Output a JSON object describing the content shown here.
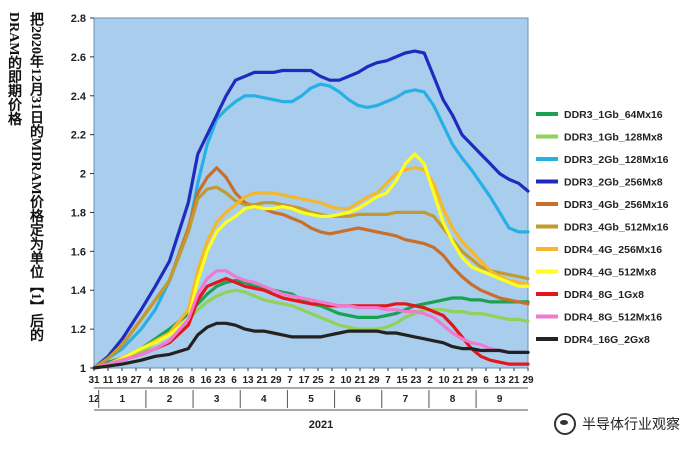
{
  "vertical_title": [
    "把2020年12月31日的MDRAM价格定为单位【1】后的",
    "DRAM的即期价格"
  ],
  "watermark": "半导体行业观察",
  "colors": {
    "plot_bg": "#a9cdec",
    "axis_text": "#222222"
  },
  "chart_data": {
    "type": "line",
    "title": "",
    "ylabel": "",
    "xlabel": "2021",
    "ylim": [
      1,
      2.8
    ],
    "yticks": [
      "1",
      "1.2",
      "1.4",
      "1.6",
      "1.8",
      "2",
      "2.2",
      "2.4",
      "2.6",
      "2.8"
    ],
    "day_ticks": [
      "31",
      "11",
      "19",
      "27",
      "4",
      "18",
      "26",
      "8",
      "16",
      "23",
      "6",
      "13",
      "21",
      "29",
      "7",
      "17",
      "25",
      "2",
      "10",
      "21",
      "29",
      "7",
      "15",
      "23",
      "2",
      "10",
      "21",
      "29",
      "6",
      "13",
      "21",
      "29"
    ],
    "month_labels": [
      "12",
      "1",
      "2",
      "3",
      "4",
      "5",
      "6",
      "7",
      "8",
      "9"
    ],
    "year_label": "2021",
    "x_months": [
      0,
      0.3,
      0.6,
      1,
      1.3,
      1.6,
      2,
      2.2,
      2.4,
      2.6,
      2.8,
      3,
      3.2,
      3.4,
      3.6,
      3.8,
      4,
      4.2,
      4.4,
      4.6,
      4.8,
      5,
      5.2,
      5.4,
      5.6,
      5.8,
      6,
      6.2,
      6.4,
      6.6,
      6.8,
      7,
      7.2,
      7.4,
      7.6,
      7.8,
      8,
      8.2,
      8.4,
      8.6,
      8.8,
      9,
      9.2
    ],
    "series": [
      {
        "name": "DDR3_1Gb_64Mx16",
        "color": "#1aa251",
        "values": [
          1,
          1.03,
          1.05,
          1.1,
          1.15,
          1.2,
          1.28,
          1.33,
          1.38,
          1.42,
          1.44,
          1.45,
          1.44,
          1.42,
          1.41,
          1.4,
          1.39,
          1.38,
          1.35,
          1.33,
          1.32,
          1.3,
          1.28,
          1.27,
          1.26,
          1.26,
          1.26,
          1.27,
          1.28,
          1.3,
          1.32,
          1.33,
          1.34,
          1.35,
          1.36,
          1.36,
          1.35,
          1.35,
          1.34,
          1.34,
          1.34,
          1.34,
          1.34
        ]
      },
      {
        "name": "DDR3_1Gb_128Mx8",
        "color": "#8fd25a",
        "values": [
          1,
          1.02,
          1.04,
          1.08,
          1.13,
          1.18,
          1.25,
          1.3,
          1.34,
          1.37,
          1.39,
          1.4,
          1.39,
          1.37,
          1.35,
          1.34,
          1.33,
          1.32,
          1.3,
          1.28,
          1.26,
          1.24,
          1.22,
          1.21,
          1.2,
          1.2,
          1.2,
          1.21,
          1.23,
          1.26,
          1.28,
          1.3,
          1.3,
          1.3,
          1.29,
          1.29,
          1.28,
          1.28,
          1.27,
          1.26,
          1.25,
          1.25,
          1.24
        ]
      },
      {
        "name": "DDR3_2Gb_128Mx16",
        "color": "#27b0e6",
        "values": [
          1,
          1.05,
          1.1,
          1.2,
          1.3,
          1.45,
          1.7,
          1.95,
          2.15,
          2.28,
          2.33,
          2.37,
          2.4,
          2.4,
          2.39,
          2.38,
          2.37,
          2.37,
          2.4,
          2.44,
          2.46,
          2.45,
          2.42,
          2.38,
          2.35,
          2.34,
          2.35,
          2.37,
          2.39,
          2.42,
          2.43,
          2.42,
          2.35,
          2.25,
          2.15,
          2.08,
          2.02,
          1.95,
          1.88,
          1.8,
          1.72,
          1.7,
          1.7
        ]
      },
      {
        "name": "DDR3_2Gb_256Mx8",
        "color": "#1f2bbf",
        "values": [
          1,
          1.06,
          1.15,
          1.3,
          1.42,
          1.55,
          1.85,
          2.1,
          2.2,
          2.3,
          2.4,
          2.48,
          2.5,
          2.52,
          2.52,
          2.52,
          2.53,
          2.53,
          2.53,
          2.53,
          2.5,
          2.48,
          2.48,
          2.5,
          2.52,
          2.55,
          2.57,
          2.58,
          2.6,
          2.62,
          2.63,
          2.62,
          2.5,
          2.38,
          2.3,
          2.2,
          2.15,
          2.1,
          2.05,
          2,
          1.97,
          1.95,
          1.91
        ]
      },
      {
        "name": "DDR3_4Gb_256Mx16",
        "color": "#c86f2c",
        "values": [
          1,
          1.05,
          1.12,
          1.25,
          1.35,
          1.45,
          1.72,
          1.9,
          1.98,
          2.03,
          1.98,
          1.9,
          1.85,
          1.83,
          1.82,
          1.8,
          1.79,
          1.77,
          1.75,
          1.72,
          1.7,
          1.69,
          1.7,
          1.71,
          1.72,
          1.71,
          1.7,
          1.69,
          1.68,
          1.66,
          1.65,
          1.64,
          1.62,
          1.58,
          1.52,
          1.47,
          1.43,
          1.4,
          1.38,
          1.36,
          1.35,
          1.34,
          1.33
        ]
      },
      {
        "name": "DDR3_4Gb_512Mx16",
        "color": "#c39a2e",
        "values": [
          1,
          1.05,
          1.12,
          1.25,
          1.35,
          1.45,
          1.7,
          1.87,
          1.92,
          1.93,
          1.9,
          1.86,
          1.84,
          1.84,
          1.85,
          1.85,
          1.84,
          1.83,
          1.82,
          1.8,
          1.79,
          1.78,
          1.78,
          1.78,
          1.79,
          1.79,
          1.79,
          1.79,
          1.8,
          1.8,
          1.8,
          1.8,
          1.78,
          1.72,
          1.66,
          1.6,
          1.56,
          1.52,
          1.5,
          1.49,
          1.48,
          1.47,
          1.46
        ]
      },
      {
        "name": "DDR4_4G_256Mx16",
        "color": "#f3b82b",
        "values": [
          1,
          1.02,
          1.05,
          1.1,
          1.14,
          1.18,
          1.3,
          1.5,
          1.65,
          1.75,
          1.8,
          1.84,
          1.88,
          1.9,
          1.9,
          1.9,
          1.89,
          1.88,
          1.87,
          1.86,
          1.85,
          1.83,
          1.82,
          1.82,
          1.85,
          1.88,
          1.9,
          1.95,
          2,
          2.02,
          2.03,
          2.02,
          1.95,
          1.82,
          1.72,
          1.65,
          1.6,
          1.55,
          1.5,
          1.47,
          1.45,
          1.44,
          1.43
        ]
      },
      {
        "name": "DDR4_4G_512Mx8",
        "color": "#ffff1c",
        "values": [
          1,
          1.02,
          1.05,
          1.1,
          1.13,
          1.17,
          1.25,
          1.45,
          1.6,
          1.7,
          1.75,
          1.78,
          1.82,
          1.83,
          1.82,
          1.82,
          1.83,
          1.82,
          1.8,
          1.79,
          1.78,
          1.78,
          1.79,
          1.8,
          1.82,
          1.85,
          1.88,
          1.9,
          1.96,
          2.05,
          2.1,
          2.05,
          1.9,
          1.75,
          1.65,
          1.57,
          1.52,
          1.5,
          1.48,
          1.46,
          1.44,
          1.42,
          1.42
        ]
      },
      {
        "name": "DDR4_8G_1Gx8",
        "color": "#e3161b",
        "values": [
          1,
          1.02,
          1.04,
          1.07,
          1.1,
          1.13,
          1.22,
          1.35,
          1.42,
          1.44,
          1.46,
          1.44,
          1.42,
          1.41,
          1.4,
          1.38,
          1.36,
          1.35,
          1.34,
          1.33,
          1.33,
          1.32,
          1.32,
          1.32,
          1.32,
          1.32,
          1.32,
          1.32,
          1.33,
          1.33,
          1.32,
          1.31,
          1.29,
          1.27,
          1.22,
          1.16,
          1.1,
          1.06,
          1.04,
          1.03,
          1.02,
          1.02,
          1.02
        ]
      },
      {
        "name": "DDR4_8G_512Mx16",
        "color": "#f07ad0",
        "values": [
          1,
          1.02,
          1.04,
          1.07,
          1.1,
          1.14,
          1.25,
          1.38,
          1.46,
          1.5,
          1.5,
          1.47,
          1.45,
          1.44,
          1.42,
          1.4,
          1.38,
          1.37,
          1.36,
          1.35,
          1.34,
          1.33,
          1.32,
          1.32,
          1.31,
          1.31,
          1.31,
          1.3,
          1.3,
          1.29,
          1.29,
          1.28,
          1.26,
          1.22,
          1.18,
          1.15,
          1.13,
          1.12,
          1.1,
          1.09,
          1.08,
          1.08,
          1.08
        ]
      },
      {
        "name": "DDR4_16G_2Gx8",
        "color": "#222222",
        "values": [
          1,
          1.01,
          1.02,
          1.04,
          1.06,
          1.07,
          1.1,
          1.17,
          1.21,
          1.23,
          1.23,
          1.22,
          1.2,
          1.19,
          1.19,
          1.18,
          1.17,
          1.16,
          1.16,
          1.16,
          1.16,
          1.17,
          1.18,
          1.19,
          1.19,
          1.19,
          1.19,
          1.18,
          1.18,
          1.17,
          1.16,
          1.15,
          1.14,
          1.13,
          1.11,
          1.1,
          1.1,
          1.09,
          1.09,
          1.09,
          1.08,
          1.08,
          1.08
        ]
      }
    ]
  }
}
